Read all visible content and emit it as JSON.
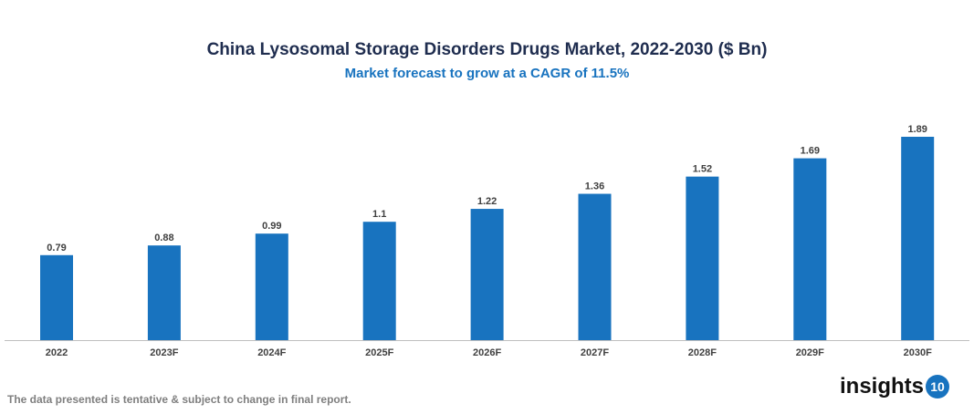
{
  "chart_data": {
    "type": "bar",
    "title": "China Lysosomal Storage Disorders Drugs Market, 2022-2030 ($ Bn)",
    "subtitle": "Market forecast to grow at a CAGR of 11.5%",
    "categories": [
      "2022",
      "2023F",
      "2024F",
      "2025F",
      "2026F",
      "2027F",
      "2028F",
      "2029F",
      "2030F"
    ],
    "values": [
      0.79,
      0.88,
      0.99,
      1.1,
      1.22,
      1.36,
      1.52,
      1.69,
      1.89
    ],
    "value_labels": [
      "0.79",
      "0.88",
      "0.99",
      "1.1",
      "1.22",
      "1.36",
      "1.52",
      "1.69",
      "1.89"
    ],
    "bar_color": "#1873bf",
    "grid": false,
    "ylim": [
      0,
      1.89
    ]
  },
  "footer": {
    "note": "The data presented is tentative & subject to change in final report."
  },
  "logo": {
    "text": "insights",
    "badge": "10"
  }
}
